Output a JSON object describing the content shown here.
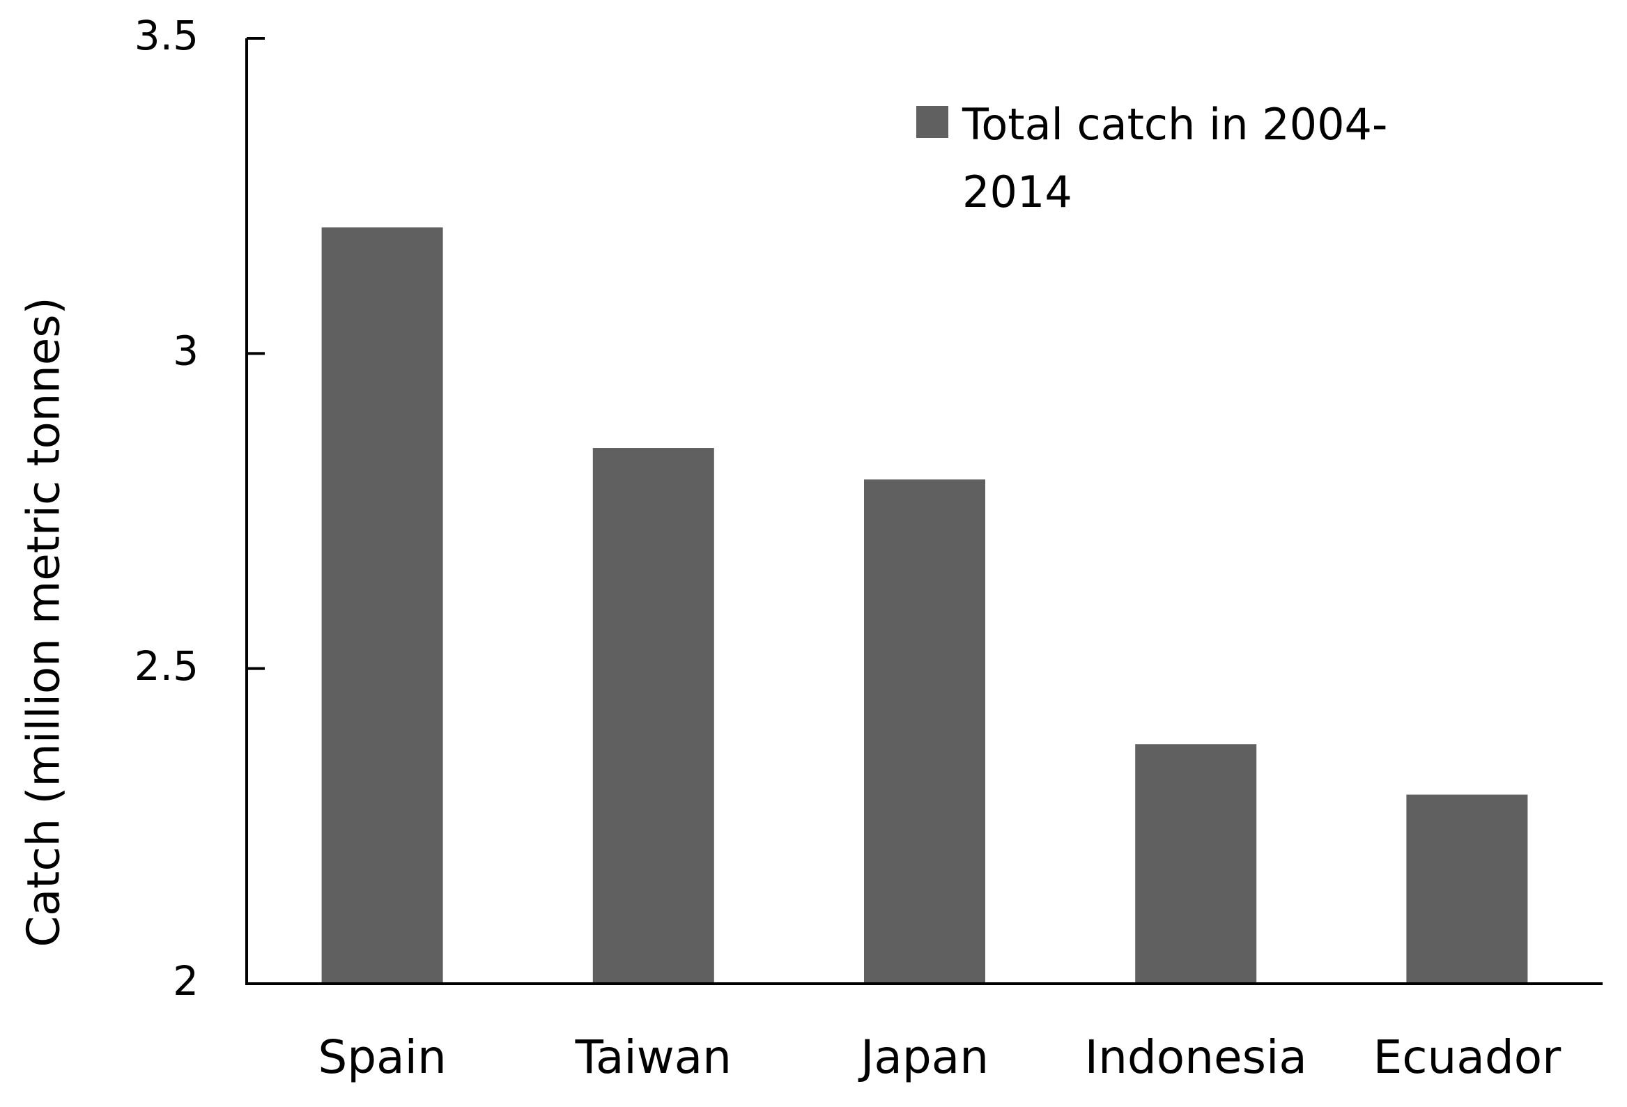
{
  "chart_data": {
    "type": "bar",
    "y_label": "Catch (million metric tonnes)",
    "categories": [
      "Spain",
      "Taiwan",
      "Japan",
      "Indonesia",
      "Ecuador"
    ],
    "series": [
      {
        "name": "Total catch in 2004-2014",
        "color": "#606060",
        "values": [
          3.2,
          2.85,
          2.8,
          2.38,
          2.3
        ]
      }
    ],
    "ylim": [
      2,
      3.5
    ],
    "yticks": [
      2,
      2.5,
      3,
      3.5
    ],
    "grid": false,
    "legend": "top-right"
  }
}
